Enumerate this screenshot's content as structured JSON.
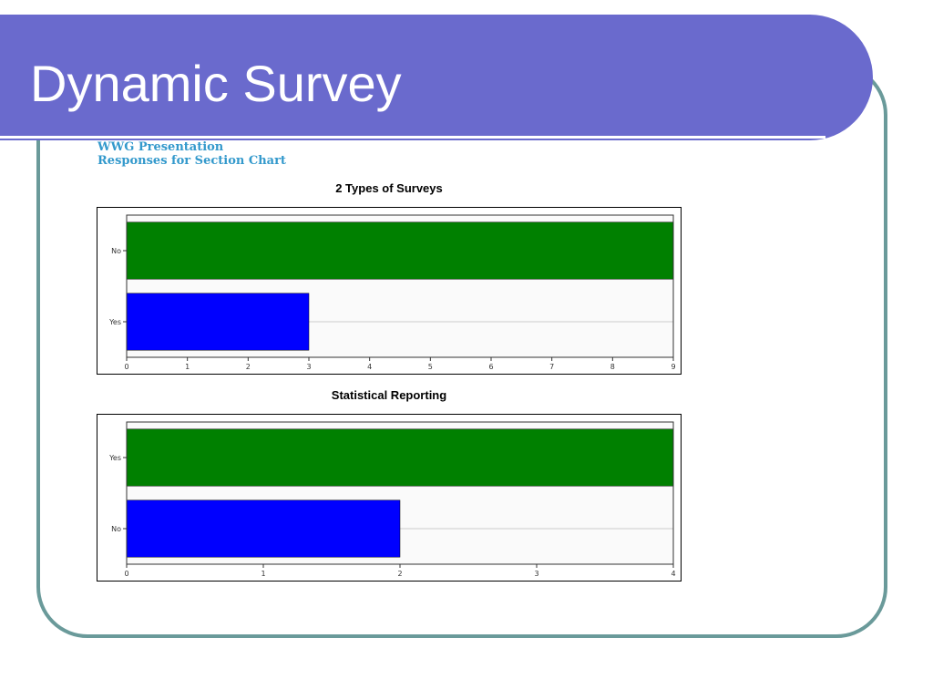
{
  "slide": {
    "title": "Dynamic Survey"
  },
  "report": {
    "line1": "WWG Presentation",
    "line2": "Responses for Section Chart"
  },
  "colors": {
    "bar_primary": "#008000",
    "bar_secondary": "#0000ff",
    "title_bar": "#6a6acd",
    "frame": "#6a9a9a",
    "report_text": "#3399cc"
  },
  "chart_data": [
    {
      "type": "bar",
      "orientation": "horizontal",
      "title": "2 Types of Surveys",
      "categories": [
        "No",
        "Yes"
      ],
      "values": [
        9,
        3
      ],
      "colors": [
        "#008000",
        "#0000ff"
      ],
      "xlim": [
        0,
        9
      ],
      "xticks": [
        0,
        1,
        2,
        3,
        4,
        5,
        6,
        7,
        8,
        9
      ],
      "grid": true
    },
    {
      "type": "bar",
      "orientation": "horizontal",
      "title": "Statistical Reporting",
      "categories": [
        "Yes",
        "No"
      ],
      "values": [
        4,
        2
      ],
      "colors": [
        "#008000",
        "#0000ff"
      ],
      "xlim": [
        0,
        4
      ],
      "xticks": [
        0,
        1,
        2,
        3,
        4
      ],
      "grid": true
    }
  ]
}
